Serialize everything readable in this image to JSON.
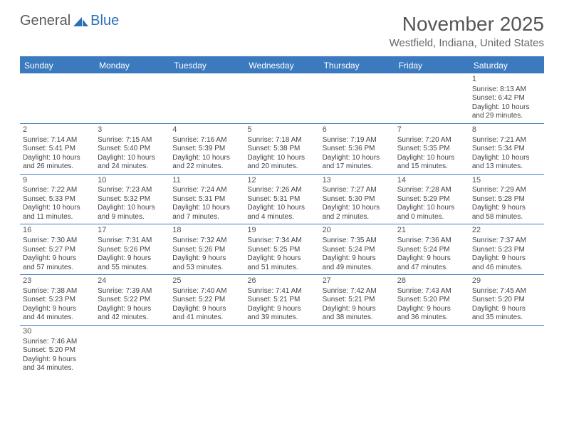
{
  "logo": {
    "part1": "General",
    "part2": "Blue"
  },
  "colors": {
    "header_bg": "#3b7abf",
    "border": "#3b7abf",
    "text": "#444444",
    "logo_blue": "#2b6fb5"
  },
  "title": "November 2025",
  "location": "Westfield, Indiana, United States",
  "day_headers": [
    "Sunday",
    "Monday",
    "Tuesday",
    "Wednesday",
    "Thursday",
    "Friday",
    "Saturday"
  ],
  "weeks": [
    [
      null,
      null,
      null,
      null,
      null,
      null,
      {
        "n": "1",
        "sr": "Sunrise: 8:13 AM",
        "ss": "Sunset: 6:42 PM",
        "d1": "Daylight: 10 hours",
        "d2": "and 29 minutes."
      }
    ],
    [
      {
        "n": "2",
        "sr": "Sunrise: 7:14 AM",
        "ss": "Sunset: 5:41 PM",
        "d1": "Daylight: 10 hours",
        "d2": "and 26 minutes."
      },
      {
        "n": "3",
        "sr": "Sunrise: 7:15 AM",
        "ss": "Sunset: 5:40 PM",
        "d1": "Daylight: 10 hours",
        "d2": "and 24 minutes."
      },
      {
        "n": "4",
        "sr": "Sunrise: 7:16 AM",
        "ss": "Sunset: 5:39 PM",
        "d1": "Daylight: 10 hours",
        "d2": "and 22 minutes."
      },
      {
        "n": "5",
        "sr": "Sunrise: 7:18 AM",
        "ss": "Sunset: 5:38 PM",
        "d1": "Daylight: 10 hours",
        "d2": "and 20 minutes."
      },
      {
        "n": "6",
        "sr": "Sunrise: 7:19 AM",
        "ss": "Sunset: 5:36 PM",
        "d1": "Daylight: 10 hours",
        "d2": "and 17 minutes."
      },
      {
        "n": "7",
        "sr": "Sunrise: 7:20 AM",
        "ss": "Sunset: 5:35 PM",
        "d1": "Daylight: 10 hours",
        "d2": "and 15 minutes."
      },
      {
        "n": "8",
        "sr": "Sunrise: 7:21 AM",
        "ss": "Sunset: 5:34 PM",
        "d1": "Daylight: 10 hours",
        "d2": "and 13 minutes."
      }
    ],
    [
      {
        "n": "9",
        "sr": "Sunrise: 7:22 AM",
        "ss": "Sunset: 5:33 PM",
        "d1": "Daylight: 10 hours",
        "d2": "and 11 minutes."
      },
      {
        "n": "10",
        "sr": "Sunrise: 7:23 AM",
        "ss": "Sunset: 5:32 PM",
        "d1": "Daylight: 10 hours",
        "d2": "and 9 minutes."
      },
      {
        "n": "11",
        "sr": "Sunrise: 7:24 AM",
        "ss": "Sunset: 5:31 PM",
        "d1": "Daylight: 10 hours",
        "d2": "and 7 minutes."
      },
      {
        "n": "12",
        "sr": "Sunrise: 7:26 AM",
        "ss": "Sunset: 5:31 PM",
        "d1": "Daylight: 10 hours",
        "d2": "and 4 minutes."
      },
      {
        "n": "13",
        "sr": "Sunrise: 7:27 AM",
        "ss": "Sunset: 5:30 PM",
        "d1": "Daylight: 10 hours",
        "d2": "and 2 minutes."
      },
      {
        "n": "14",
        "sr": "Sunrise: 7:28 AM",
        "ss": "Sunset: 5:29 PM",
        "d1": "Daylight: 10 hours",
        "d2": "and 0 minutes."
      },
      {
        "n": "15",
        "sr": "Sunrise: 7:29 AM",
        "ss": "Sunset: 5:28 PM",
        "d1": "Daylight: 9 hours",
        "d2": "and 58 minutes."
      }
    ],
    [
      {
        "n": "16",
        "sr": "Sunrise: 7:30 AM",
        "ss": "Sunset: 5:27 PM",
        "d1": "Daylight: 9 hours",
        "d2": "and 57 minutes."
      },
      {
        "n": "17",
        "sr": "Sunrise: 7:31 AM",
        "ss": "Sunset: 5:26 PM",
        "d1": "Daylight: 9 hours",
        "d2": "and 55 minutes."
      },
      {
        "n": "18",
        "sr": "Sunrise: 7:32 AM",
        "ss": "Sunset: 5:26 PM",
        "d1": "Daylight: 9 hours",
        "d2": "and 53 minutes."
      },
      {
        "n": "19",
        "sr": "Sunrise: 7:34 AM",
        "ss": "Sunset: 5:25 PM",
        "d1": "Daylight: 9 hours",
        "d2": "and 51 minutes."
      },
      {
        "n": "20",
        "sr": "Sunrise: 7:35 AM",
        "ss": "Sunset: 5:24 PM",
        "d1": "Daylight: 9 hours",
        "d2": "and 49 minutes."
      },
      {
        "n": "21",
        "sr": "Sunrise: 7:36 AM",
        "ss": "Sunset: 5:24 PM",
        "d1": "Daylight: 9 hours",
        "d2": "and 47 minutes."
      },
      {
        "n": "22",
        "sr": "Sunrise: 7:37 AM",
        "ss": "Sunset: 5:23 PM",
        "d1": "Daylight: 9 hours",
        "d2": "and 46 minutes."
      }
    ],
    [
      {
        "n": "23",
        "sr": "Sunrise: 7:38 AM",
        "ss": "Sunset: 5:23 PM",
        "d1": "Daylight: 9 hours",
        "d2": "and 44 minutes."
      },
      {
        "n": "24",
        "sr": "Sunrise: 7:39 AM",
        "ss": "Sunset: 5:22 PM",
        "d1": "Daylight: 9 hours",
        "d2": "and 42 minutes."
      },
      {
        "n": "25",
        "sr": "Sunrise: 7:40 AM",
        "ss": "Sunset: 5:22 PM",
        "d1": "Daylight: 9 hours",
        "d2": "and 41 minutes."
      },
      {
        "n": "26",
        "sr": "Sunrise: 7:41 AM",
        "ss": "Sunset: 5:21 PM",
        "d1": "Daylight: 9 hours",
        "d2": "and 39 minutes."
      },
      {
        "n": "27",
        "sr": "Sunrise: 7:42 AM",
        "ss": "Sunset: 5:21 PM",
        "d1": "Daylight: 9 hours",
        "d2": "and 38 minutes."
      },
      {
        "n": "28",
        "sr": "Sunrise: 7:43 AM",
        "ss": "Sunset: 5:20 PM",
        "d1": "Daylight: 9 hours",
        "d2": "and 36 minutes."
      },
      {
        "n": "29",
        "sr": "Sunrise: 7:45 AM",
        "ss": "Sunset: 5:20 PM",
        "d1": "Daylight: 9 hours",
        "d2": "and 35 minutes."
      }
    ],
    [
      {
        "n": "30",
        "sr": "Sunrise: 7:46 AM",
        "ss": "Sunset: 5:20 PM",
        "d1": "Daylight: 9 hours",
        "d2": "and 34 minutes."
      },
      null,
      null,
      null,
      null,
      null,
      null
    ]
  ]
}
